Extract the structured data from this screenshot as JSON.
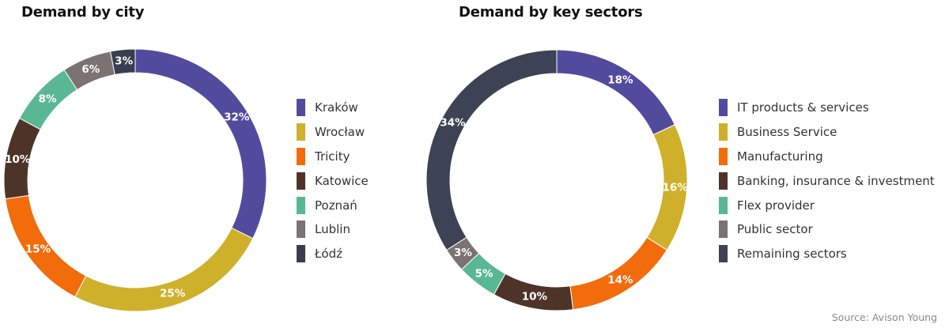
{
  "source": "Source: Avison Young",
  "chart_data": [
    {
      "type": "pie",
      "donut": true,
      "title": "Demand by city",
      "categories": [
        "Kraków",
        "Wrocław",
        "Tricity",
        "Katowice",
        "Poznań",
        "Lublin",
        "Łódź"
      ],
      "values": [
        32,
        25,
        15,
        10,
        8,
        6,
        3
      ],
      "labels": [
        "32%",
        "25%",
        "15%",
        "10%",
        "8%",
        "6%",
        "3%"
      ],
      "colors": [
        "#524b9d",
        "#cfb02a",
        "#f26c0c",
        "#4e3428",
        "#5ab793",
        "#7b7371",
        "#383e50"
      ],
      "legend_position": "right"
    },
    {
      "type": "pie",
      "donut": true,
      "title": "Demand by key sectors",
      "categories": [
        "IT products & services",
        "Business Service",
        "Manufacturing",
        "Banking, insurance & investment",
        "Flex provider",
        "Public sector",
        "Remaining sectors"
      ],
      "values": [
        18,
        16,
        14,
        10,
        5,
        3,
        34
      ],
      "labels": [
        "18%",
        "16%",
        "14%",
        "10%",
        "5%",
        "3%",
        "34%"
      ],
      "colors": [
        "#524b9d",
        "#cfb02a",
        "#f26c0c",
        "#4e3428",
        "#5ab793",
        "#7b7371",
        "#3d4254"
      ],
      "legend_position": "right"
    }
  ]
}
